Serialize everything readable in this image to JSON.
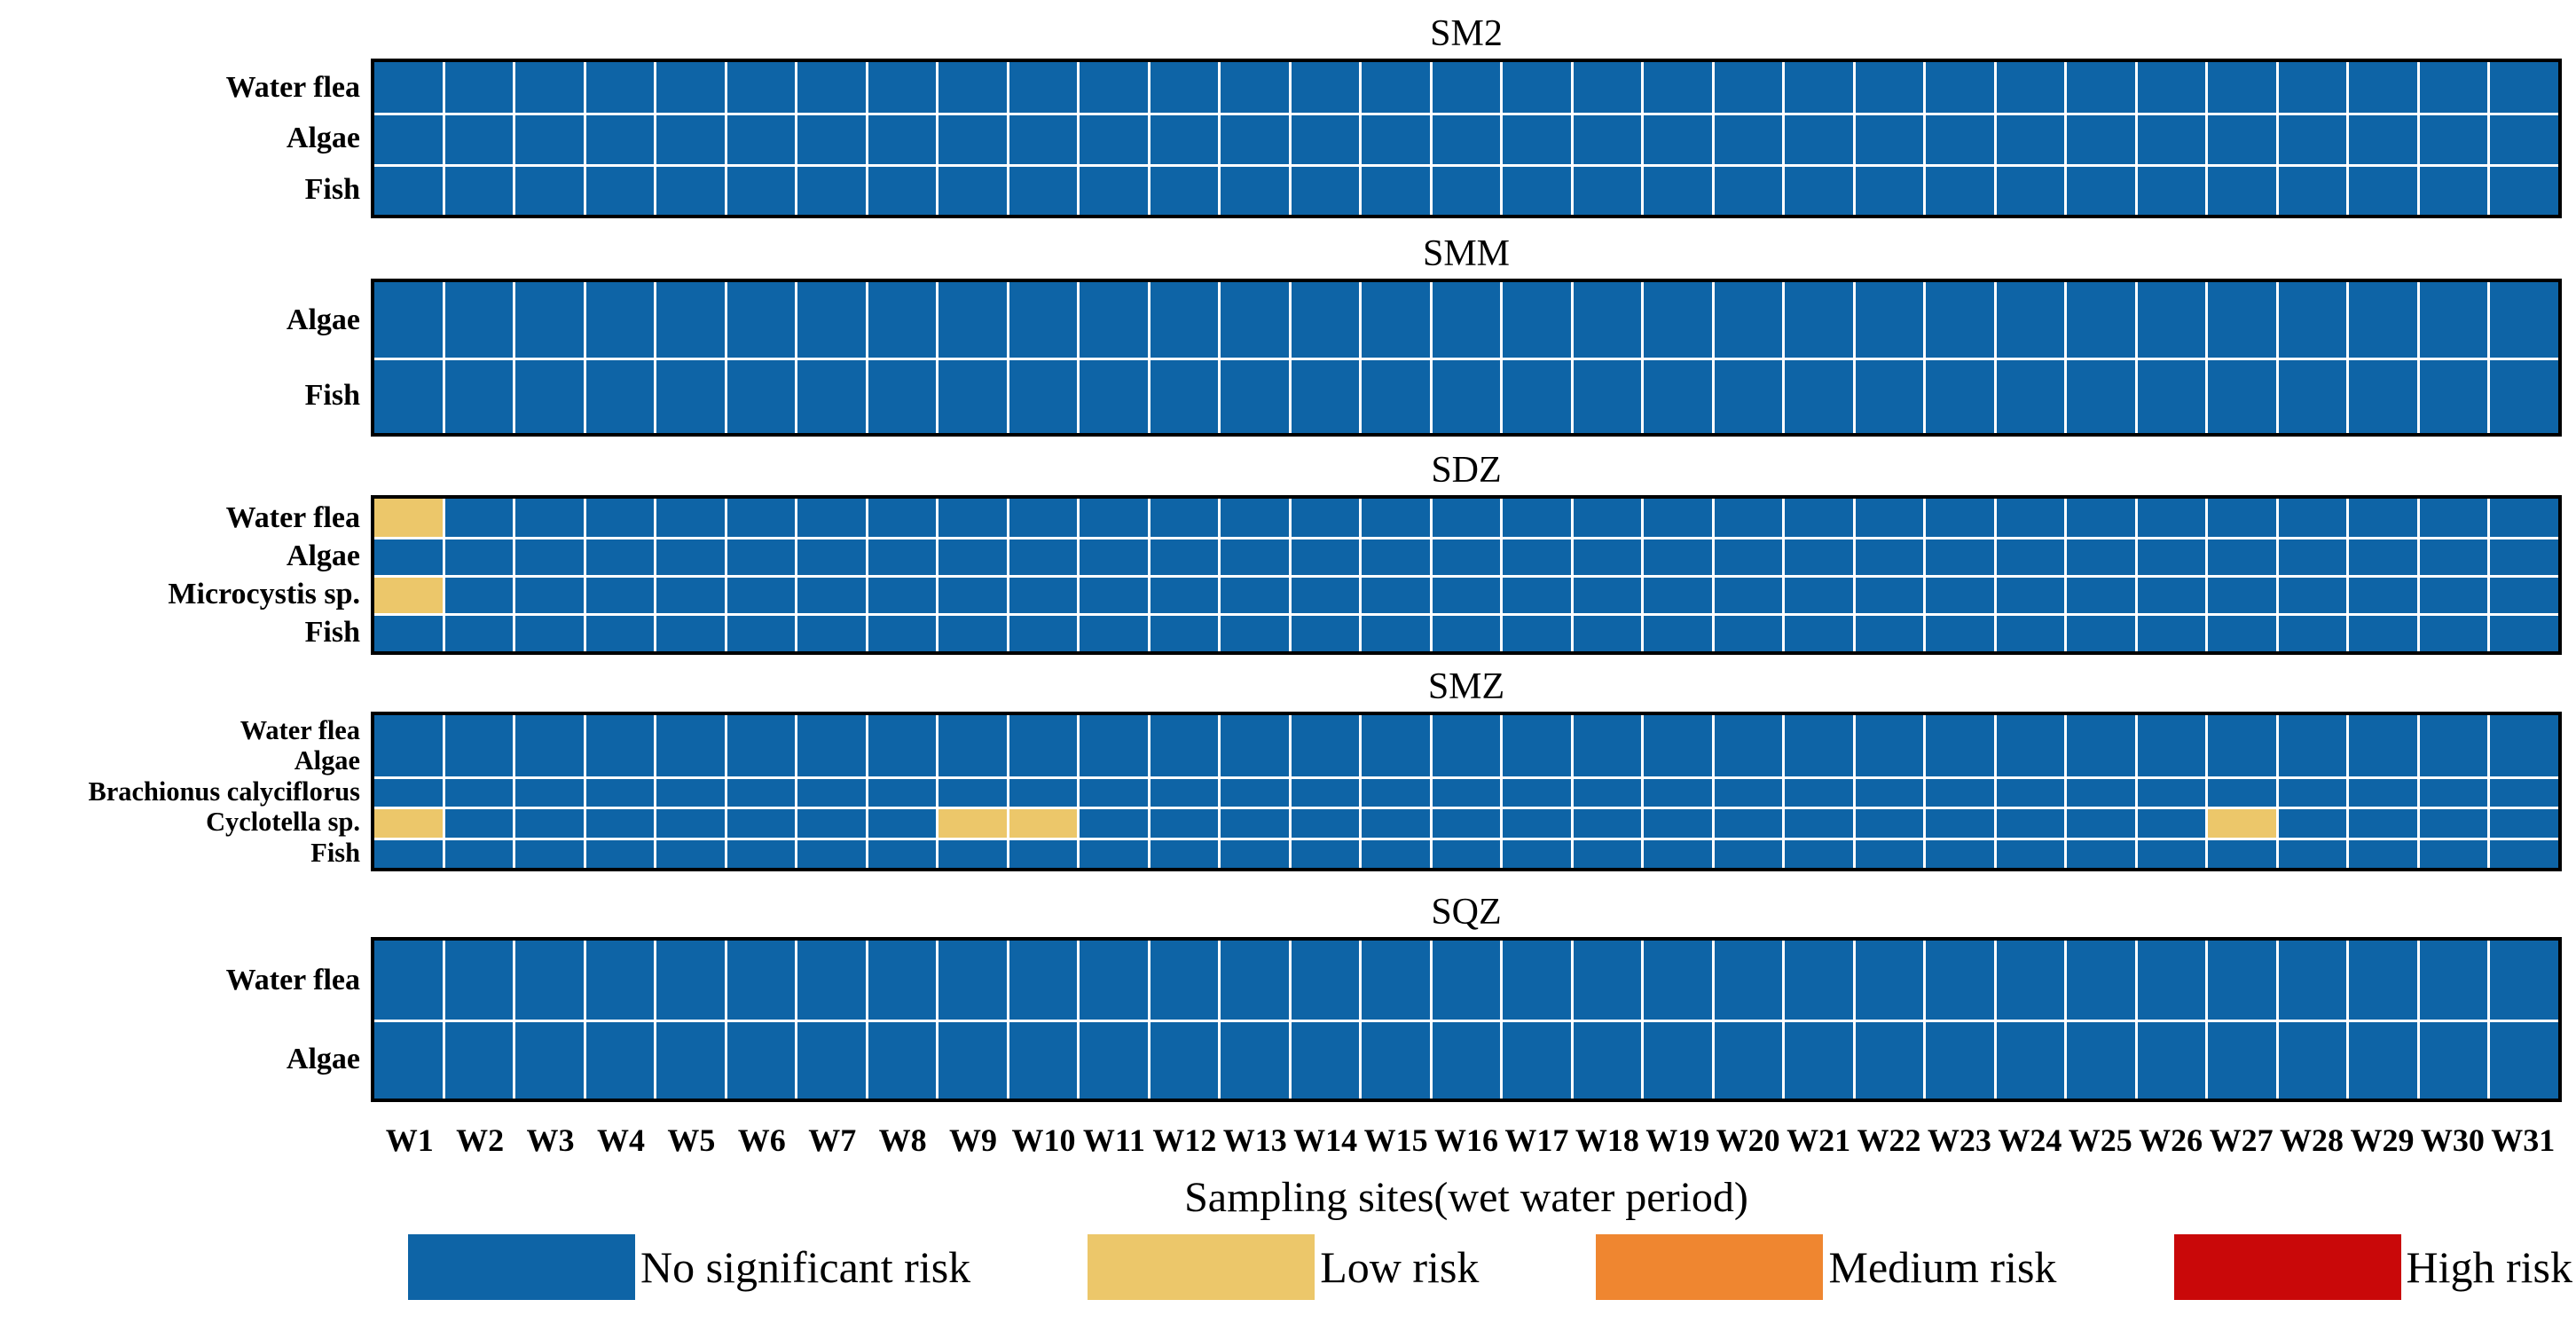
{
  "chart_data": {
    "type": "heatmap",
    "xlabel": "Sampling sites(wet water period)",
    "x_labels": [
      "W1",
      "W2",
      "W3",
      "W4",
      "W5",
      "W6",
      "W7",
      "W8",
      "W9",
      "W10",
      "W11",
      "W12",
      "W13",
      "W14",
      "W15",
      "W16",
      "W17",
      "W18",
      "W19",
      "W20",
      "W21",
      "W22",
      "W23",
      "W24",
      "W25",
      "W26",
      "W27",
      "W28",
      "W29",
      "W30",
      "W31"
    ],
    "default_level": "no_significant_risk",
    "levels": {
      "no_significant_risk": "#0e64a6",
      "low_risk": "#ecc76a",
      "medium_risk": "#ef8630",
      "high_risk": "#c90809"
    },
    "gridline_color": "#ffffff",
    "border_color": "#000000",
    "panels": [
      {
        "title": "SM2",
        "rows": [
          "Water flea",
          "Algae",
          "Fish"
        ],
        "low_risk_cells": []
      },
      {
        "title": "SMM",
        "rows": [
          "Algae",
          "Fish"
        ],
        "low_risk_cells": []
      },
      {
        "title": "SDZ",
        "rows": [
          "Water flea",
          "Algae",
          "Microcystis sp.",
          "Fish"
        ],
        "low_risk_cells": [
          {
            "row": "Water flea",
            "site": "W1"
          },
          {
            "row": "Microcystis sp.",
            "site": "W1"
          }
        ]
      },
      {
        "title": "SMZ",
        "rows": [
          "Water flea",
          "Algae",
          "Brachionus calyciflorus",
          "Cyclotella sp.",
          "Fish"
        ],
        "hidden_row_dividers": [
          1
        ],
        "low_risk_cells": [
          {
            "row": "Cyclotella sp.",
            "site": "W1"
          },
          {
            "row": "Cyclotella sp.",
            "site": "W9"
          },
          {
            "row": "Cyclotella sp.",
            "site": "W10"
          },
          {
            "row": "Cyclotella sp.",
            "site": "W27"
          }
        ]
      },
      {
        "title": "SQZ",
        "rows": [
          "Water flea",
          "Algae"
        ],
        "low_risk_cells": []
      }
    ],
    "legend": [
      {
        "label": "No significant risk",
        "color": "#0e64a6"
      },
      {
        "label": "Low risk",
        "color": "#ecc76a"
      },
      {
        "label": "Medium risk",
        "color": "#ef8630"
      },
      {
        "label": "High risk",
        "color": "#c90809"
      }
    ],
    "legend_position": "bottom"
  }
}
